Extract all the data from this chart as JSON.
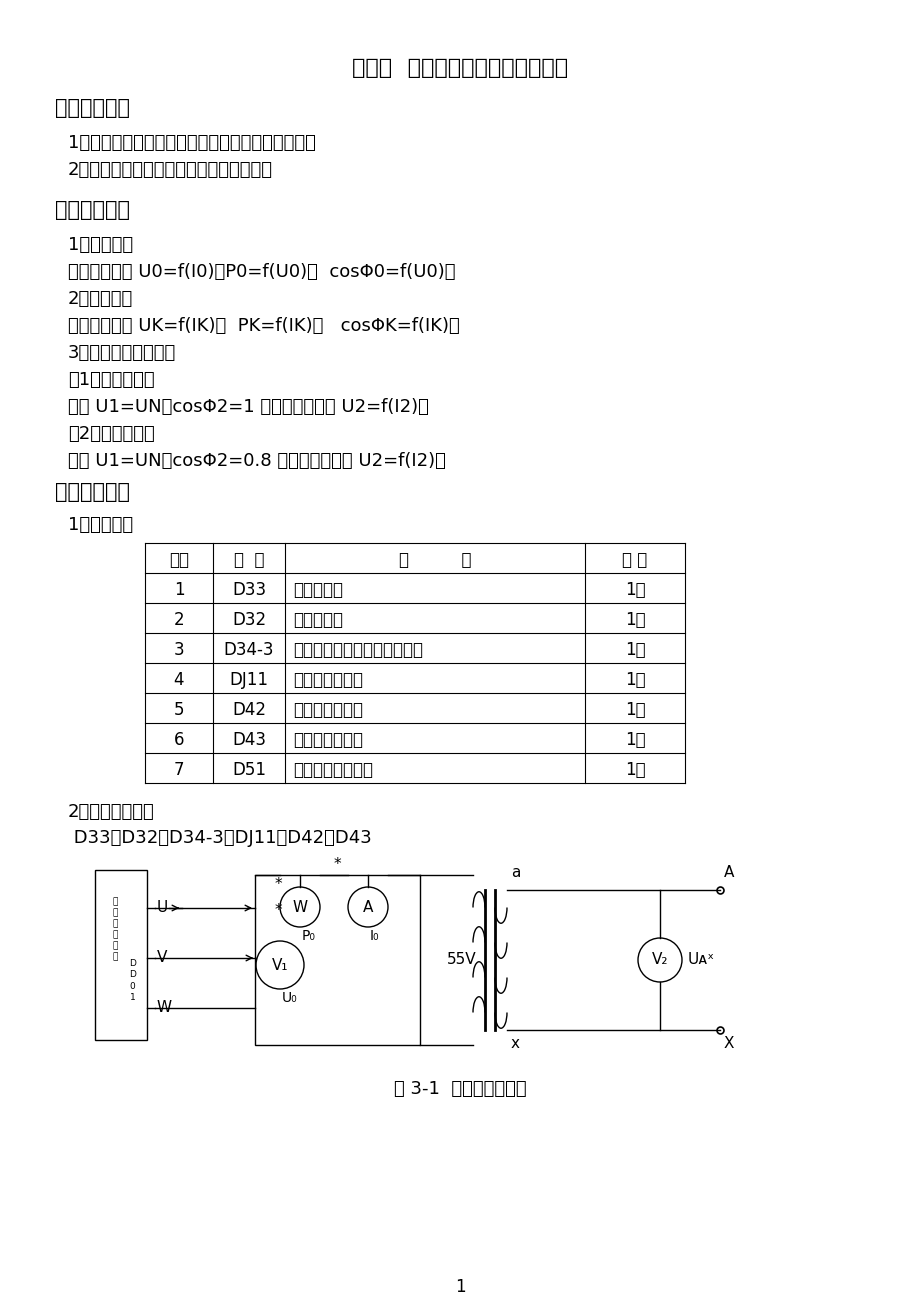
{
  "title": "实验三  单相变压器空载和短路实验",
  "s1_header": "一、实验目的",
  "s1_lines": [
    "1、通过空载和短路实验测定变压器的变比和参数。",
    "2、通过负载实验测取变压器的运行特性。"
  ],
  "s2_header": "二、实验项目",
  "s2_lines": [
    "1、空载实验",
    "测取空载特性 U0=f(I0)，P0=f(U0)，  cosΦ0=f(U0)。",
    "2、短路实验",
    "测取短路特性 UK=f(IK)，  PK=f(IK)，   cosΦK=f(IK)。",
    "3、负载实验（选做）",
    "（1）纯电阻负载",
    "保持 U1=UN，cosΦ2=1 的条件下，测取 U2=f(I2)。",
    "（2）阻感性负载",
    "保持 U1=UN，cosΦ2=0.8 的条件下，测取 U2=f(I2)。"
  ],
  "s3_header": "三、实验方法",
  "sub1": "1、实验设备",
  "tbl_hdr": [
    "序号",
    "型  号",
    "名          称",
    "数 量"
  ],
  "tbl_rows": [
    [
      "1",
      "D33",
      "交流电压表",
      "1件"
    ],
    [
      "2",
      "D32",
      "交流电流表",
      "1件"
    ],
    [
      "3",
      "D34-3",
      "单三相智能功率、功率因数表",
      "1件"
    ],
    [
      "4",
      "DJ11",
      "三相组式变压器",
      "1件"
    ],
    [
      "5",
      "D42",
      "三相可调电阻器",
      "1件"
    ],
    [
      "6",
      "D43",
      "三相可调电抗器",
      "1件"
    ],
    [
      "7",
      "D51",
      "波形测试及开关板",
      "1件"
    ]
  ],
  "sub2": "2、屏上排列顺序",
  "screen_order": " D33、D32、D34-3、DJ11、D42、D43",
  "fig_caption": "图 3-1  空载实验接线图",
  "page_num": "1"
}
